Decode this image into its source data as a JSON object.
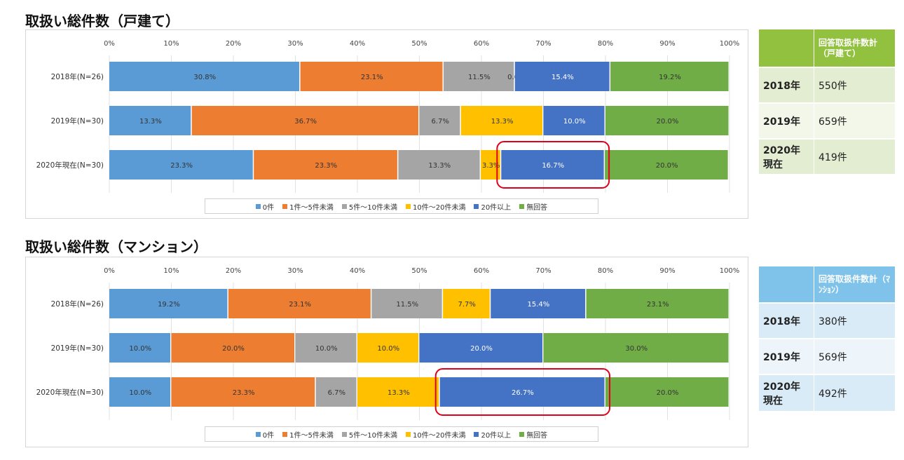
{
  "charts": [
    {
      "title": "取扱い総件数（戸建て）",
      "table": {
        "header": "回答取扱件数計（戸建て）",
        "rows": [
          {
            "year": "2018年",
            "value": "550件"
          },
          {
            "year": "2019年",
            "value": "659件"
          },
          {
            "year": "2020年現在",
            "value": "419件"
          }
        ]
      }
    },
    {
      "title": "取扱い総件数（マンション）",
      "table": {
        "header": "回答取扱件数計（ﾏﾝｼｮﾝ）",
        "rows": [
          {
            "year": "2018年",
            "value": "380件"
          },
          {
            "year": "2019年",
            "value": "569件"
          },
          {
            "year": "2020年現在",
            "value": "492件"
          }
        ]
      }
    }
  ],
  "chart_data": [
    {
      "type": "bar",
      "stacked": true,
      "orientation": "horizontal",
      "title": "取扱い総件数（戸建て）",
      "categories": [
        "2018年(N=26)",
        "2019年(N=30)",
        "2020年現在(N=30)"
      ],
      "x_ticks": [
        "0%",
        "10%",
        "20%",
        "30%",
        "40%",
        "50%",
        "60%",
        "70%",
        "80%",
        "90%",
        "100%"
      ],
      "xlim": [
        0,
        100
      ],
      "legend_position": "bottom",
      "series": [
        {
          "name": "0件",
          "color": "#5b9bd5",
          "values": [
            30.8,
            13.3,
            23.3
          ],
          "labels": [
            "30.8%",
            "13.3%",
            "23.3%"
          ]
        },
        {
          "name": "1件～5件未満",
          "color": "#ed7d31",
          "values": [
            23.1,
            36.7,
            23.3
          ],
          "labels": [
            "23.1%",
            "36.7%",
            "23.3%"
          ]
        },
        {
          "name": "5件～10件未満",
          "color": "#a5a5a5",
          "values": [
            11.5,
            6.7,
            13.3
          ],
          "labels": [
            "11.5%",
            "6.7%",
            "13.3%"
          ]
        },
        {
          "name": "10件～20件未満",
          "color": "#ffc000",
          "values": [
            0.0,
            13.3,
            3.3
          ],
          "labels": [
            "0.0%",
            "13.3%",
            "3.3%"
          ]
        },
        {
          "name": "20件以上",
          "color": "#4472c4",
          "values": [
            15.4,
            10.0,
            16.7
          ],
          "labels": [
            "15.4%",
            "10.0%",
            "16.7%"
          ]
        },
        {
          "name": "無回答",
          "color": "#70ad47",
          "values": [
            19.2,
            20.0,
            20.0
          ],
          "labels": [
            "19.2%",
            "20.0%",
            "20.0%"
          ]
        }
      ],
      "highlight": {
        "category_index": 2,
        "series_index": 4,
        "color": "#e0001b"
      }
    },
    {
      "type": "bar",
      "stacked": true,
      "orientation": "horizontal",
      "title": "取扱い総件数（マンション）",
      "categories": [
        "2018年(N=26)",
        "2019年(N=30)",
        "2020年現在(N=30)"
      ],
      "x_ticks": [
        "0%",
        "10%",
        "20%",
        "30%",
        "40%",
        "50%",
        "60%",
        "70%",
        "80%",
        "90%",
        "100%"
      ],
      "xlim": [
        0,
        100
      ],
      "legend_position": "bottom",
      "series": [
        {
          "name": "0件",
          "color": "#5b9bd5",
          "values": [
            19.2,
            10.0,
            10.0
          ],
          "labels": [
            "19.2%",
            "10.0%",
            "10.0%"
          ]
        },
        {
          "name": "1件～5件未満",
          "color": "#ed7d31",
          "values": [
            23.1,
            20.0,
            23.3
          ],
          "labels": [
            "23.1%",
            "20.0%",
            "23.3%"
          ]
        },
        {
          "name": "5件～10件未満",
          "color": "#a5a5a5",
          "values": [
            11.5,
            10.0,
            6.7
          ],
          "labels": [
            "11.5%",
            "10.0%",
            "6.7%"
          ]
        },
        {
          "name": "10件～20件未満",
          "color": "#ffc000",
          "values": [
            7.7,
            10.0,
            13.3
          ],
          "labels": [
            "7.7%",
            "10.0%",
            "13.3%"
          ]
        },
        {
          "name": "20件以上",
          "color": "#4472c4",
          "values": [
            15.4,
            20.0,
            26.7
          ],
          "labels": [
            "15.4%",
            "20.0%",
            "26.7%"
          ]
        },
        {
          "name": "無回答",
          "color": "#70ad47",
          "values": [
            23.1,
            30.0,
            20.0
          ],
          "labels": [
            "23.1%",
            "30.0%",
            "20.0%"
          ]
        }
      ],
      "highlight": {
        "category_index": 2,
        "series_index": 4,
        "color": "#e0001b"
      }
    }
  ]
}
